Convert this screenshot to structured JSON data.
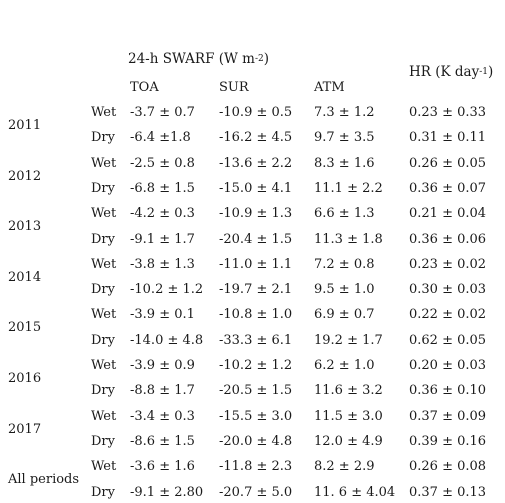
{
  "header": {
    "group_label_text": "24-h SWARF (W m",
    "group_label_sup": "-2",
    "group_label_close": ")",
    "hr_label_text": "HR (K day",
    "hr_label_sup": "-1",
    "hr_label_close": ")",
    "columns": [
      "TOA",
      "SUR",
      "ATM"
    ]
  },
  "rows": [
    {
      "year": "2011",
      "wet": [
        "-3.7 ± 0.7",
        "-10.9 ± 0.5",
        "7.3 ± 1.2",
        "0.23 ± 0.33"
      ],
      "dry": [
        "-6.4 ±1.8",
        "-16.2 ± 4.5",
        "9.7 ± 3.5",
        "0.31 ± 0.11"
      ]
    },
    {
      "year": "2012",
      "wet": [
        "-2.5 ± 0.8",
        "-13.6 ± 2.2",
        "8.3 ± 1.6",
        "0.26 ± 0.05"
      ],
      "dry": [
        "-6.8 ± 1.5",
        "-15.0 ± 4.1",
        "11.1 ± 2.2",
        "0.36 ± 0.07"
      ]
    },
    {
      "year": "2013",
      "wet": [
        "-4.2 ± 0.3",
        "-10.9 ± 1.3",
        "6.6 ± 1.3",
        "0.21 ± 0.04"
      ],
      "dry": [
        "-9.1 ± 1.7",
        "-20.4 ± 1.5",
        "11.3 ± 1.8",
        "0.36 ± 0.06"
      ]
    },
    {
      "year": "2014",
      "wet": [
        "-3.8 ± 1.3",
        "-11.0 ± 1.1",
        "7.2 ± 0.8",
        "0.23 ± 0.02"
      ],
      "dry": [
        "-10.2 ± 1.2",
        "-19.7 ± 2.1",
        "9.5 ± 1.0",
        "0.30 ± 0.03"
      ]
    },
    {
      "year": "2015",
      "wet": [
        "-3.9 ± 0.1",
        "-10.8 ± 1.0",
        "6.9 ± 0.7",
        "0.22 ± 0.02"
      ],
      "dry": [
        "-14.0 ± 4.8",
        "-33.3 ± 6.1",
        "19.2 ± 1.7",
        "0.62 ± 0.05"
      ]
    },
    {
      "year": "2016",
      "wet": [
        "-3.9 ± 0.9",
        "-10.2 ± 1.2",
        "6.2 ± 1.0",
        "0.20 ± 0.03"
      ],
      "dry": [
        "-8.8 ± 1.7",
        "-20.5 ± 1.5",
        "11.6 ± 3.2",
        "0.36 ± 0.10"
      ]
    },
    {
      "year": "2017",
      "wet": [
        "-3.4 ± 0.3",
        "-15.5 ± 3.0",
        "11.5 ± 3.0",
        "0.37 ± 0.09"
      ],
      "dry": [
        "-8.6 ± 1.5",
        "-20.0 ± 4.8",
        "12.0 ± 4.9",
        "0.39 ± 0.16"
      ]
    },
    {
      "year": "All periods",
      "wet": [
        "-3.6 ± 1.6",
        "-11.8 ± 2.3",
        "8.2 ± 2.9",
        "0.26 ± 0.08"
      ],
      "dry": [
        "-9.1 ± 2.80",
        "-20.7 ± 5.0",
        "11. 6 ± 4.04",
        "0.37 ± 0.13"
      ]
    }
  ],
  "season_labels": {
    "wet": "Wet",
    "dry": "Dry"
  }
}
